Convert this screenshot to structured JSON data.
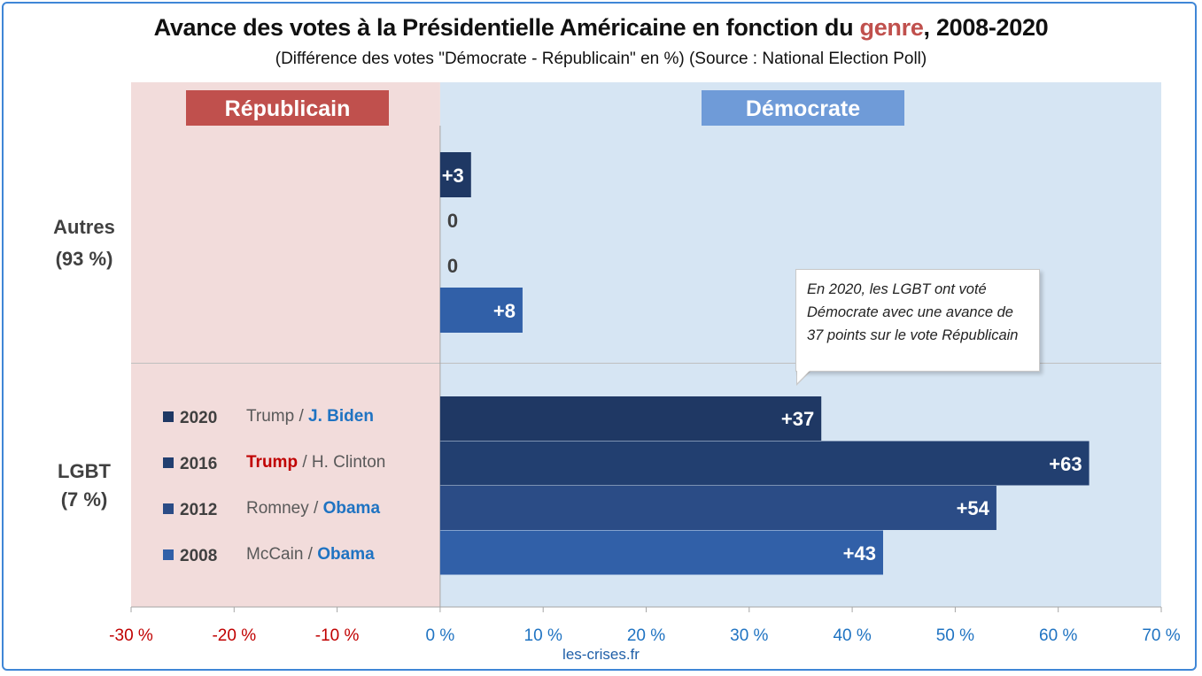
{
  "title_prefix": "Avance des votes à la Présidentielle Américaine en fonction du ",
  "title_highlight": "genre",
  "title_suffix": ", 2008-2020",
  "subtitle": "(Différence des votes \"Démocrate - Républicain\" en %) (Source : National Election Poll)",
  "footer": "les-crises.fr",
  "callout_text": "En 2020, les LGBT ont voté Démocrate avec une avance de 37 points sur le vote Républicain",
  "colors": {
    "rep_bg": "#f2dcdb",
    "dem_bg": "#d6e5f3",
    "rep_header": "#c0504d",
    "dem_header": "#6f9bd8",
    "s2020": "#1f3864",
    "s2016": "#223f70",
    "s2012": "#2b4c86",
    "s2008": "#3160a8",
    "rep_text": "#c00000",
    "dem_text": "#1f73c2"
  },
  "chart_data": {
    "type": "bar",
    "orientation": "horizontal",
    "xlim": [
      -30,
      70
    ],
    "x_ticks": [
      "-30 %",
      "-20 %",
      "-10 %",
      "0 %",
      "10 %",
      "20 %",
      "30 %",
      "40 %",
      "50 %",
      "60 %",
      "70 %"
    ],
    "x_tick_values": [
      -30,
      -20,
      -10,
      0,
      10,
      20,
      30,
      40,
      50,
      60,
      70
    ],
    "zone_labels": {
      "left": "Républicain",
      "right": "Démocrate"
    },
    "groups": [
      {
        "name": "Autres",
        "share": "(93 %)",
        "bars": [
          {
            "year": "2020",
            "value": 3,
            "label": "+3"
          },
          {
            "year": "2016",
            "value": 0,
            "label": "0"
          },
          {
            "year": "2012",
            "value": 0,
            "label": "0"
          },
          {
            "year": "2008",
            "value": 8,
            "label": "+8"
          }
        ]
      },
      {
        "name": "LGBT",
        "share": "(7 %)",
        "bars": [
          {
            "year": "2020",
            "value": 37,
            "label": "+37"
          },
          {
            "year": "2016",
            "value": 63,
            "label": "+63"
          },
          {
            "year": "2012",
            "value": 54,
            "label": "+54"
          },
          {
            "year": "2008",
            "value": 43,
            "label": "+43"
          }
        ]
      }
    ],
    "legend": [
      {
        "year": "2020",
        "rep": "Trump",
        "dem": "J. Biden",
        "winner": "dem"
      },
      {
        "year": "2016",
        "rep": "Trump",
        "dem": "H. Clinton",
        "winner": "rep"
      },
      {
        "year": "2012",
        "rep": "Romney",
        "dem": "Obama",
        "winner": "dem"
      },
      {
        "year": "2008",
        "rep": "McCain",
        "dem": "Obama",
        "winner": "dem"
      }
    ],
    "legend_separator": " / "
  }
}
